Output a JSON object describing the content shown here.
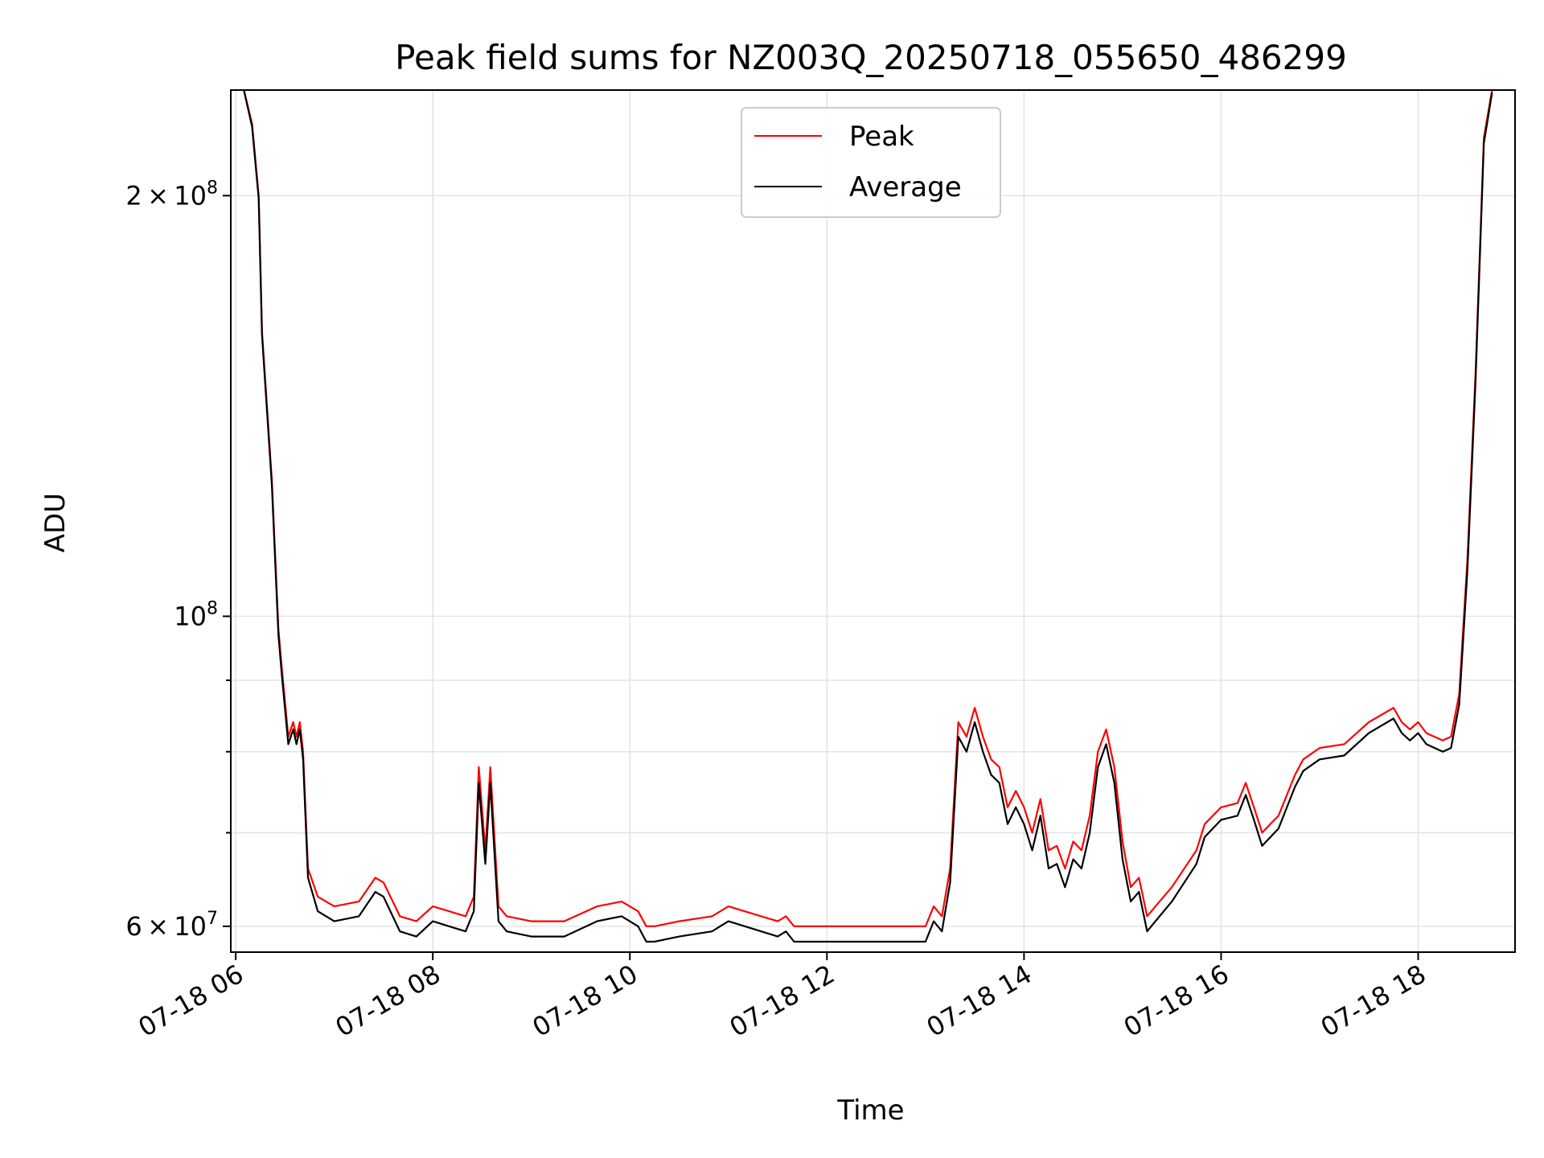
{
  "chart_data": {
    "type": "line",
    "title": "Peak field sums for NZ003Q_20250718_055650_486299",
    "xlabel": "Time",
    "ylabel": "ADU",
    "yscale": "log",
    "grid": true,
    "legend_position": "top-center",
    "xlim": [
      "2025-07-18 05:57",
      "2025-07-18 18:59"
    ],
    "ylim": [
      57500000,
      238000000
    ],
    "x_ticks": [
      {
        "x": "2025-07-18 06:00",
        "label": "07-18 06"
      },
      {
        "x": "2025-07-18 08:00",
        "label": "07-18 08"
      },
      {
        "x": "2025-07-18 10:00",
        "label": "07-18 10"
      },
      {
        "x": "2025-07-18 12:00",
        "label": "07-18 12"
      },
      {
        "x": "2025-07-18 14:00",
        "label": "07-18 14"
      },
      {
        "x": "2025-07-18 16:00",
        "label": "07-18 16"
      },
      {
        "x": "2025-07-18 18:00",
        "label": "07-18 18"
      }
    ],
    "y_major_ticks": [
      {
        "value": 60000000,
        "mantissa": "6",
        "exponent": "7"
      },
      {
        "value": 100000000,
        "mantissa": "",
        "exponent": "8"
      },
      {
        "value": 200000000,
        "mantissa": "2",
        "exponent": "8"
      }
    ],
    "y_minor_ticks": [
      70000000,
      80000000,
      90000000
    ],
    "series": [
      {
        "name": "Peak",
        "color": "#ff0000",
        "x": [
          "2025-07-18 06:05",
          "2025-07-18 06:10",
          "2025-07-18 06:14",
          "2025-07-18 06:16",
          "2025-07-18 06:22",
          "2025-07-18 06:26",
          "2025-07-18 06:28",
          "2025-07-18 06:32",
          "2025-07-18 06:35",
          "2025-07-18 06:37",
          "2025-07-18 06:39",
          "2025-07-18 06:41",
          "2025-07-18 06:44",
          "2025-07-18 06:50",
          "2025-07-18 07:00",
          "2025-07-18 07:15",
          "2025-07-18 07:25",
          "2025-07-18 07:30",
          "2025-07-18 07:40",
          "2025-07-18 07:50",
          "2025-07-18 08:00",
          "2025-07-18 08:10",
          "2025-07-18 08:20",
          "2025-07-18 08:25",
          "2025-07-18 08:28",
          "2025-07-18 08:32",
          "2025-07-18 08:35",
          "2025-07-18 08:40",
          "2025-07-18 08:45",
          "2025-07-18 09:00",
          "2025-07-18 09:20",
          "2025-07-18 09:40",
          "2025-07-18 09:55",
          "2025-07-18 10:05",
          "2025-07-18 10:10",
          "2025-07-18 10:15",
          "2025-07-18 10:30",
          "2025-07-18 10:50",
          "2025-07-18 11:00",
          "2025-07-18 11:20",
          "2025-07-18 11:30",
          "2025-07-18 11:35",
          "2025-07-18 11:40",
          "2025-07-18 12:00",
          "2025-07-18 12:30",
          "2025-07-18 13:00",
          "2025-07-18 13:05",
          "2025-07-18 13:10",
          "2025-07-18 13:15",
          "2025-07-18 13:20",
          "2025-07-18 13:25",
          "2025-07-18 13:30",
          "2025-07-18 13:35",
          "2025-07-18 13:40",
          "2025-07-18 13:45",
          "2025-07-18 13:50",
          "2025-07-18 13:55",
          "2025-07-18 14:00",
          "2025-07-18 14:05",
          "2025-07-18 14:10",
          "2025-07-18 14:15",
          "2025-07-18 14:20",
          "2025-07-18 14:25",
          "2025-07-18 14:30",
          "2025-07-18 14:35",
          "2025-07-18 14:40",
          "2025-07-18 14:45",
          "2025-07-18 14:50",
          "2025-07-18 14:55",
          "2025-07-18 15:00",
          "2025-07-18 15:05",
          "2025-07-18 15:10",
          "2025-07-18 15:15",
          "2025-07-18 15:20",
          "2025-07-18 15:30",
          "2025-07-18 15:45",
          "2025-07-18 15:50",
          "2025-07-18 16:00",
          "2025-07-18 16:10",
          "2025-07-18 16:15",
          "2025-07-18 16:20",
          "2025-07-18 16:25",
          "2025-07-18 16:30",
          "2025-07-18 16:35",
          "2025-07-18 16:45",
          "2025-07-18 16:50",
          "2025-07-18 17:00",
          "2025-07-18 17:15",
          "2025-07-18 17:30",
          "2025-07-18 17:45",
          "2025-07-18 17:50",
          "2025-07-18 17:55",
          "2025-07-18 18:00",
          "2025-07-18 18:05",
          "2025-07-18 18:15",
          "2025-07-18 18:20",
          "2025-07-18 18:25",
          "2025-07-18 18:30",
          "2025-07-18 18:35",
          "2025-07-18 18:40",
          "2025-07-18 18:45"
        ],
        "y": [
          238000000,
          225000000,
          200000000,
          160000000,
          125000000,
          98000000,
          92000000,
          82000000,
          84000000,
          82000000,
          84000000,
          80000000,
          66000000,
          63000000,
          62000000,
          62500000,
          65000000,
          64500000,
          61000000,
          60500000,
          62000000,
          61500000,
          61000000,
          63000000,
          78000000,
          68000000,
          78000000,
          62000000,
          61000000,
          60500000,
          60500000,
          62000000,
          62500000,
          61500000,
          60000000,
          60000000,
          60500000,
          61000000,
          62000000,
          61000000,
          60500000,
          61000000,
          60000000,
          60000000,
          60000000,
          60000000,
          62000000,
          61000000,
          66000000,
          84000000,
          82000000,
          86000000,
          82000000,
          79000000,
          78000000,
          73000000,
          75000000,
          73000000,
          70000000,
          74000000,
          68000000,
          68500000,
          66000000,
          69000000,
          68000000,
          72000000,
          80000000,
          83000000,
          78000000,
          69000000,
          64000000,
          65000000,
          61000000,
          62000000,
          64000000,
          68000000,
          71000000,
          73000000,
          73500000,
          76000000,
          73000000,
          70000000,
          71000000,
          72000000,
          77000000,
          79000000,
          80500000,
          81000000,
          84000000,
          86000000,
          84000000,
          83000000,
          84000000,
          82500000,
          81500000,
          82000000,
          88000000,
          110000000,
          150000000,
          220000000,
          238000000
        ]
      },
      {
        "name": "Average",
        "color": "#000000",
        "x": [
          "2025-07-18 06:05",
          "2025-07-18 06:10",
          "2025-07-18 06:14",
          "2025-07-18 06:16",
          "2025-07-18 06:22",
          "2025-07-18 06:26",
          "2025-07-18 06:28",
          "2025-07-18 06:32",
          "2025-07-18 06:35",
          "2025-07-18 06:37",
          "2025-07-18 06:39",
          "2025-07-18 06:41",
          "2025-07-18 06:44",
          "2025-07-18 06:50",
          "2025-07-18 07:00",
          "2025-07-18 07:15",
          "2025-07-18 07:25",
          "2025-07-18 07:30",
          "2025-07-18 07:40",
          "2025-07-18 07:50",
          "2025-07-18 08:00",
          "2025-07-18 08:10",
          "2025-07-18 08:20",
          "2025-07-18 08:25",
          "2025-07-18 08:28",
          "2025-07-18 08:32",
          "2025-07-18 08:35",
          "2025-07-18 08:40",
          "2025-07-18 08:45",
          "2025-07-18 09:00",
          "2025-07-18 09:20",
          "2025-07-18 09:40",
          "2025-07-18 09:55",
          "2025-07-18 10:05",
          "2025-07-18 10:10",
          "2025-07-18 10:15",
          "2025-07-18 10:30",
          "2025-07-18 10:50",
          "2025-07-18 11:00",
          "2025-07-18 11:20",
          "2025-07-18 11:30",
          "2025-07-18 11:35",
          "2025-07-18 11:40",
          "2025-07-18 12:00",
          "2025-07-18 12:30",
          "2025-07-18 13:00",
          "2025-07-18 13:05",
          "2025-07-18 13:10",
          "2025-07-18 13:15",
          "2025-07-18 13:20",
          "2025-07-18 13:25",
          "2025-07-18 13:30",
          "2025-07-18 13:35",
          "2025-07-18 13:40",
          "2025-07-18 13:45",
          "2025-07-18 13:50",
          "2025-07-18 13:55",
          "2025-07-18 14:00",
          "2025-07-18 14:05",
          "2025-07-18 14:10",
          "2025-07-18 14:15",
          "2025-07-18 14:20",
          "2025-07-18 14:25",
          "2025-07-18 14:30",
          "2025-07-18 14:35",
          "2025-07-18 14:40",
          "2025-07-18 14:45",
          "2025-07-18 14:50",
          "2025-07-18 14:55",
          "2025-07-18 15:00",
          "2025-07-18 15:05",
          "2025-07-18 15:10",
          "2025-07-18 15:15",
          "2025-07-18 15:20",
          "2025-07-18 15:30",
          "2025-07-18 15:45",
          "2025-07-18 15:50",
          "2025-07-18 16:00",
          "2025-07-18 16:10",
          "2025-07-18 16:15",
          "2025-07-18 16:20",
          "2025-07-18 16:25",
          "2025-07-18 16:30",
          "2025-07-18 16:35",
          "2025-07-18 16:45",
          "2025-07-18 16:50",
          "2025-07-18 17:00",
          "2025-07-18 17:15",
          "2025-07-18 17:30",
          "2025-07-18 17:45",
          "2025-07-18 17:50",
          "2025-07-18 17:55",
          "2025-07-18 18:00",
          "2025-07-18 18:05",
          "2025-07-18 18:15",
          "2025-07-18 18:20",
          "2025-07-18 18:25",
          "2025-07-18 18:30",
          "2025-07-18 18:35",
          "2025-07-18 18:40",
          "2025-07-18 18:45"
        ],
        "y": [
          238000000,
          224000000,
          199000000,
          159000000,
          124000000,
          97000000,
          91000000,
          81000000,
          83000000,
          81000000,
          83000000,
          79000000,
          65000000,
          61500000,
          60500000,
          61000000,
          63500000,
          63000000,
          59500000,
          59000000,
          60500000,
          60000000,
          59500000,
          61500000,
          76000000,
          66500000,
          76000000,
          60500000,
          59500000,
          59000000,
          59000000,
          60500000,
          61000000,
          60000000,
          58500000,
          58500000,
          59000000,
          59500000,
          60500000,
          59500000,
          59000000,
          59500000,
          58500000,
          58500000,
          58500000,
          58500000,
          60500000,
          59500000,
          64500000,
          82000000,
          80000000,
          84000000,
          80000000,
          77000000,
          76000000,
          71000000,
          73000000,
          71000000,
          68000000,
          72000000,
          66000000,
          66500000,
          64000000,
          67000000,
          66000000,
          70000000,
          78000000,
          81000000,
          76000000,
          67000000,
          62500000,
          63500000,
          59500000,
          60500000,
          62500000,
          66500000,
          69500000,
          71500000,
          72000000,
          74500000,
          71500000,
          68500000,
          69500000,
          70500000,
          75500000,
          77500000,
          79000000,
          79500000,
          82500000,
          84500000,
          82500000,
          81500000,
          82500000,
          81000000,
          80000000,
          80500000,
          86500000,
          108000000,
          148000000,
          218000000,
          237000000
        ]
      }
    ]
  }
}
